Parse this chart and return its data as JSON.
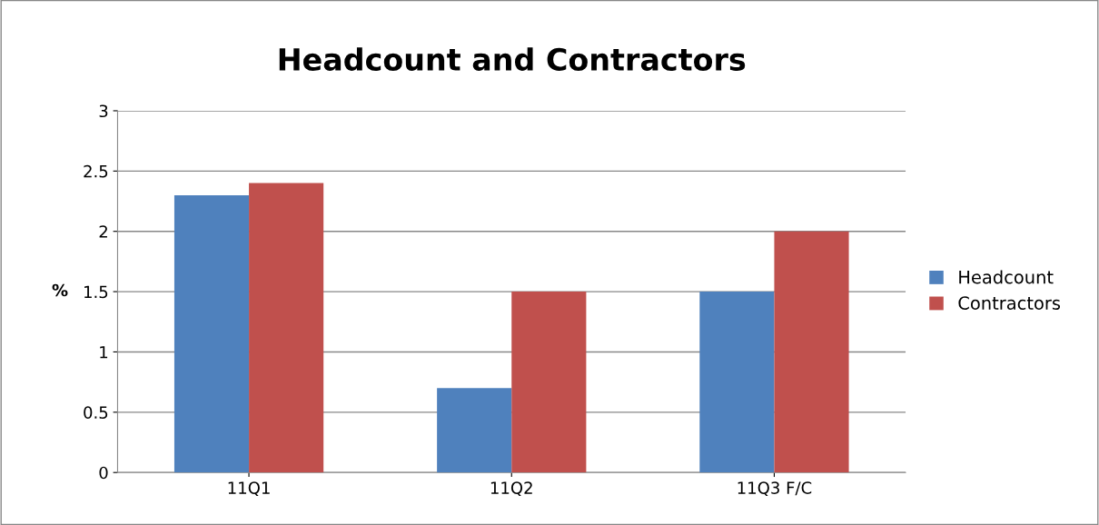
{
  "chart_data": {
    "type": "bar",
    "title": "Headcount and Contractors",
    "ylabel": "%",
    "categories": [
      "11Q1",
      "11Q2",
      "11Q3 F/C"
    ],
    "series": [
      {
        "name": "Headcount",
        "color": "#4f81bd",
        "values": [
          2.3,
          0.7,
          1.5
        ]
      },
      {
        "name": "Contractors",
        "color": "#c0504d",
        "values": [
          2.4,
          1.5,
          2.0
        ]
      }
    ],
    "ylim": [
      0,
      3
    ],
    "yticks": [
      0,
      0.5,
      1,
      1.5,
      2,
      2.5,
      3
    ],
    "grid": "y",
    "legend": "right"
  }
}
